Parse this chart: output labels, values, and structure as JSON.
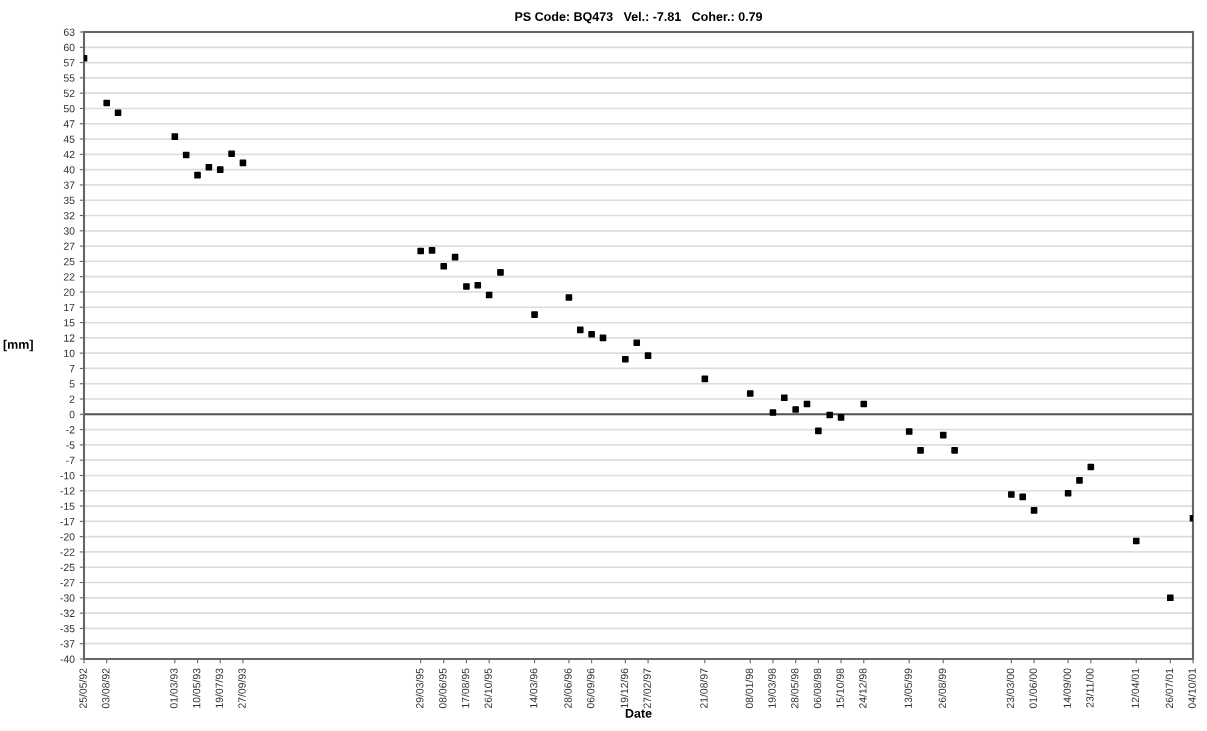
{
  "chart_data": {
    "type": "scatter",
    "title": "PS Code: BQ473   Vel.: -7.81   Coher.: 0.79",
    "xlabel": "Date",
    "ylabel": "[mm]",
    "x": [
      "1992-05-25",
      "1992-08-03",
      "1992-09-07",
      "1993-03-01",
      "1993-04-05",
      "1993-05-10",
      "1993-06-14",
      "1993-07-19",
      "1993-08-23",
      "1993-09-27",
      "1995-03-29",
      "1995-05-03",
      "1995-06-08",
      "1995-07-13",
      "1995-08-17",
      "1995-09-21",
      "1995-10-26",
      "1995-11-30",
      "1996-03-14",
      "1996-06-28",
      "1996-08-02",
      "1996-09-06",
      "1996-10-11",
      "1996-12-19",
      "1997-01-23",
      "1997-02-27",
      "1997-08-21",
      "1998-01-08",
      "1998-03-19",
      "1998-04-23",
      "1998-05-28",
      "1998-07-02",
      "1998-08-06",
      "1998-09-10",
      "1998-10-15",
      "1998-12-24",
      "1999-05-13",
      "1999-06-17",
      "1999-08-26",
      "1999-09-30",
      "2000-03-23",
      "2000-04-27",
      "2000-06-01",
      "2000-09-14",
      "2000-10-19",
      "2000-11-23",
      "2001-04-12",
      "2001-07-26",
      "2001-10-04"
    ],
    "series": [
      {
        "color": "#000000",
        "values": [
          58.2,
          50.9,
          49.3,
          45.4,
          42.4,
          39.1,
          40.4,
          40.0,
          42.6,
          41.1,
          26.7,
          26.8,
          24.2,
          25.7,
          20.9,
          21.1,
          19.5,
          23.2,
          16.3,
          19.1,
          13.8,
          13.1,
          12.5,
          9.0,
          11.7,
          9.6,
          5.8,
          3.4,
          0.3,
          2.7,
          0.8,
          1.7,
          -2.7,
          -0.1,
          -0.5,
          1.7,
          -2.8,
          -5.9,
          -3.4,
          -5.9,
          -13.1,
          -13.5,
          -15.7,
          -12.9,
          -10.8,
          -8.6,
          -20.7,
          -30.0,
          -17.0
        ]
      }
    ],
    "marker": "square",
    "grid": "y",
    "legend": false,
    "xlim": [
      "1992-05-25",
      "2001-10-04"
    ],
    "xticks": [
      {
        "value": "1992-05-25",
        "label": "25/05/92"
      },
      {
        "value": "1992-08-03",
        "label": "03/08/92"
      },
      {
        "value": "1993-03-01",
        "label": "01/03/93"
      },
      {
        "value": "1993-05-10",
        "label": "10/05/93"
      },
      {
        "value": "1993-07-19",
        "label": "19/07/93"
      },
      {
        "value": "1993-09-27",
        "label": "27/09/93"
      },
      {
        "value": "1995-03-29",
        "label": "29/03/95"
      },
      {
        "value": "1995-06-08",
        "label": "08/06/95"
      },
      {
        "value": "1995-08-17",
        "label": "17/08/95"
      },
      {
        "value": "1995-10-26",
        "label": "26/10/95"
      },
      {
        "value": "1996-03-14",
        "label": "14/03/96"
      },
      {
        "value": "1996-06-28",
        "label": "28/06/96"
      },
      {
        "value": "1996-09-06",
        "label": "06/09/96"
      },
      {
        "value": "1996-12-19",
        "label": "19/12/96"
      },
      {
        "value": "1997-02-27",
        "label": "27/02/97"
      },
      {
        "value": "1997-08-21",
        "label": "21/08/97"
      },
      {
        "value": "1998-01-08",
        "label": "08/01/98"
      },
      {
        "value": "1998-03-19",
        "label": "19/03/98"
      },
      {
        "value": "1998-05-28",
        "label": "28/05/98"
      },
      {
        "value": "1998-08-06",
        "label": "06/08/98"
      },
      {
        "value": "1998-10-15",
        "label": "15/10/98"
      },
      {
        "value": "1998-12-24",
        "label": "24/12/98"
      },
      {
        "value": "1999-05-13",
        "label": "13/05/99"
      },
      {
        "value": "1999-08-26",
        "label": "26/08/99"
      },
      {
        "value": "2000-03-23",
        "label": "23/03/00"
      },
      {
        "value": "2000-06-01",
        "label": "01/06/00"
      },
      {
        "value": "2000-09-14",
        "label": "14/09/00"
      },
      {
        "value": "2000-11-23",
        "label": "23/11/00"
      },
      {
        "value": "2001-04-12",
        "label": "12/04/01"
      },
      {
        "value": "2001-07-26",
        "label": "26/07/01"
      },
      {
        "value": "2001-10-04",
        "label": "04/10/01"
      }
    ],
    "ylim": [
      -40,
      62.5
    ],
    "yticks": [
      -40,
      {
        "value": -37.5,
        "label": "-37"
      },
      -35,
      {
        "value": -32.5,
        "label": "-32"
      },
      -30,
      {
        "value": -27.5,
        "label": "-27"
      },
      -25,
      {
        "value": -22.5,
        "label": "-22"
      },
      -20,
      {
        "value": -17.5,
        "label": "-17"
      },
      -15,
      {
        "value": -12.5,
        "label": "-12"
      },
      -10,
      {
        "value": -7.5,
        "label": "-7"
      },
      -5,
      {
        "value": -2.5,
        "label": "-2"
      },
      0,
      {
        "value": 2.5,
        "label": "2"
      },
      5,
      {
        "value": 7.5,
        "label": "7"
      },
      10,
      {
        "value": 12.5,
        "label": "12"
      },
      15,
      {
        "value": 17.5,
        "label": "17"
      },
      20,
      {
        "value": 22.5,
        "label": "22"
      },
      25,
      {
        "value": 27.5,
        "label": "27"
      },
      30,
      {
        "value": 32.5,
        "label": "32"
      },
      35,
      {
        "value": 37.5,
        "label": "37"
      },
      40,
      {
        "value": 42.5,
        "label": "42"
      },
      45,
      {
        "value": 47.5,
        "label": "47"
      },
      50,
      {
        "value": 52.5,
        "label": "52"
      },
      55,
      {
        "value": 57.5,
        "label": "57"
      },
      60,
      {
        "value": 62.5,
        "label": "63"
      }
    ],
    "ref_lines": [
      {
        "axis": "y",
        "value": 0,
        "color": "#555555"
      }
    ]
  }
}
